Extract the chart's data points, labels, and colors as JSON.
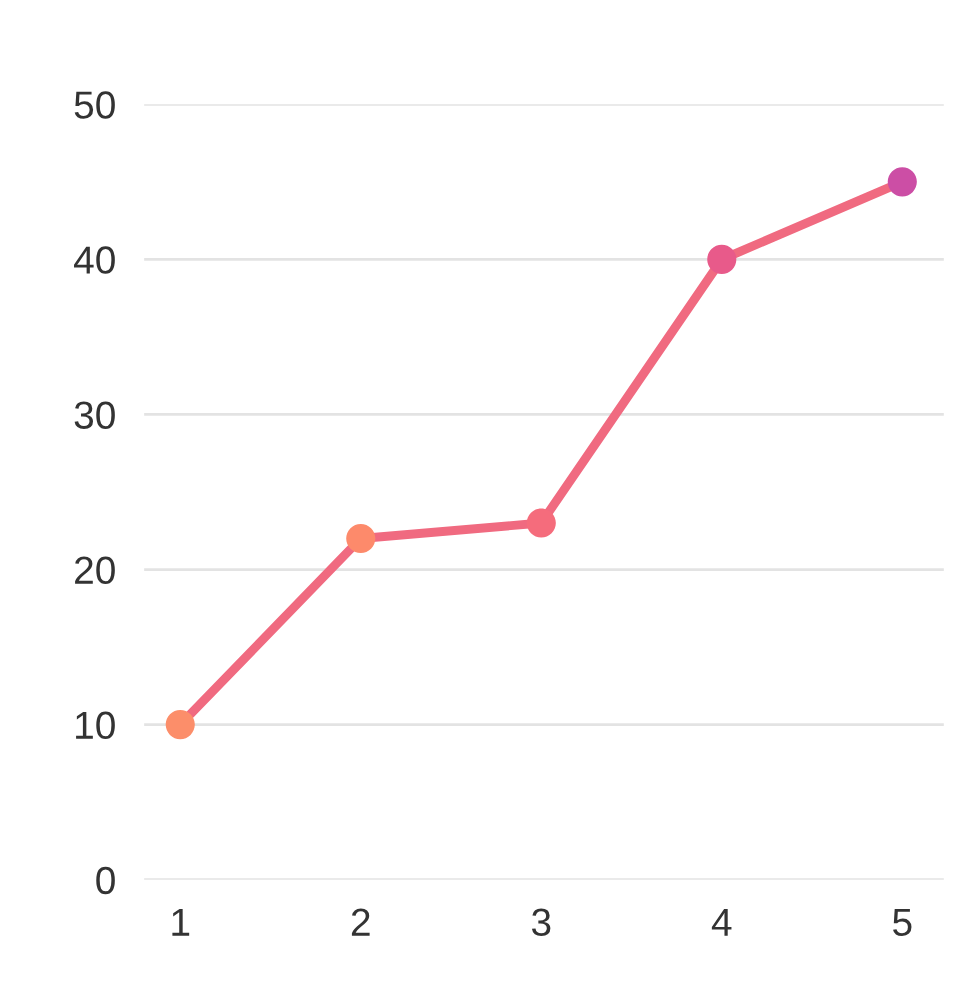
{
  "chart_data": {
    "type": "line",
    "categories": [
      "1",
      "2",
      "3",
      "4",
      "5"
    ],
    "series": [
      {
        "color": "#f06a80",
        "values": [
          10,
          22,
          23,
          40,
          45
        ],
        "colors": [
          "#fc8e6a",
          "#fd8a6b",
          "#f56c7c",
          "#e85a8a",
          "#cc4ea5"
        ]
      }
    ],
    "ylim": [
      0,
      50
    ],
    "yticks": [
      0,
      10,
      20,
      30,
      40,
      50
    ],
    "grid": "y",
    "marker": "circle",
    "line_style": "solid"
  }
}
